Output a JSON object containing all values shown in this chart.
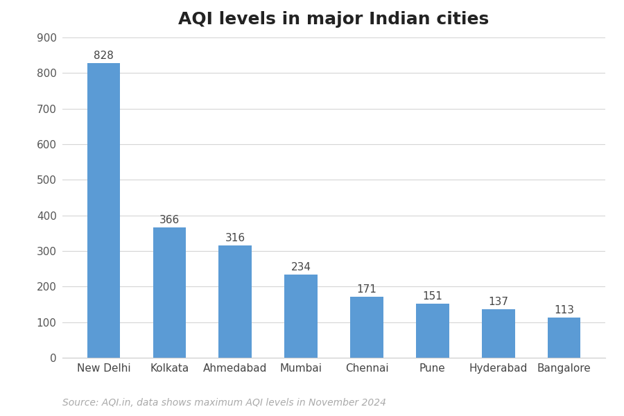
{
  "title": "AQI levels in major Indian cities",
  "categories": [
    "New Delhi",
    "Kolkata",
    "Ahmedabad",
    "Mumbai",
    "Chennai",
    "Pune",
    "Hyderabad",
    "Bangalore"
  ],
  "values": [
    828,
    366,
    316,
    234,
    171,
    151,
    137,
    113
  ],
  "bar_color": "#5b9bd5",
  "ylim": [
    0,
    900
  ],
  "yticks": [
    0,
    100,
    200,
    300,
    400,
    500,
    600,
    700,
    800,
    900
  ],
  "source_text": "Source: AQI.in, data shows maximum AQI levels in November 2024",
  "title_fontsize": 18,
  "label_fontsize": 11,
  "tick_fontsize": 11,
  "source_fontsize": 10,
  "background_color": "#ffffff",
  "bar_width": 0.5
}
